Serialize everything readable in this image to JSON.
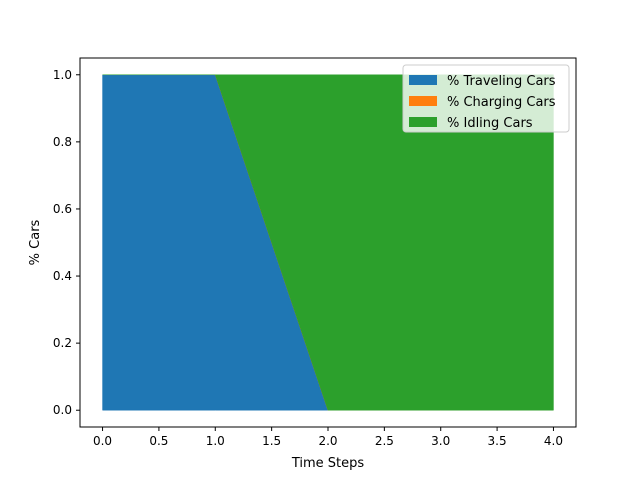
{
  "chart_data": {
    "type": "area",
    "stacked": true,
    "xlabel": "Time Steps",
    "ylabel": "% Cars",
    "x": [
      0,
      1,
      2,
      3,
      4
    ],
    "xlim": [
      -0.2,
      4.2
    ],
    "ylim": [
      -0.05,
      1.05
    ],
    "xticks": [
      "0.0",
      "0.5",
      "1.0",
      "1.5",
      "2.0",
      "2.5",
      "3.0",
      "3.5",
      "4.0"
    ],
    "yticks": [
      "0.0",
      "0.2",
      "0.4",
      "0.6",
      "0.8",
      "1.0"
    ],
    "grid": false,
    "legend_position": "top-right",
    "series": [
      {
        "name": "% Traveling Cars",
        "color": "#1f77b4",
        "values": [
          1,
          1,
          0,
          0,
          0
        ]
      },
      {
        "name": "% Charging Cars",
        "color": "#ff7f0e",
        "values": [
          0,
          0,
          0,
          0,
          0
        ]
      },
      {
        "name": "% Idling Cars",
        "color": "#2ca02c",
        "values": [
          0,
          0,
          1,
          1,
          1
        ]
      }
    ]
  }
}
